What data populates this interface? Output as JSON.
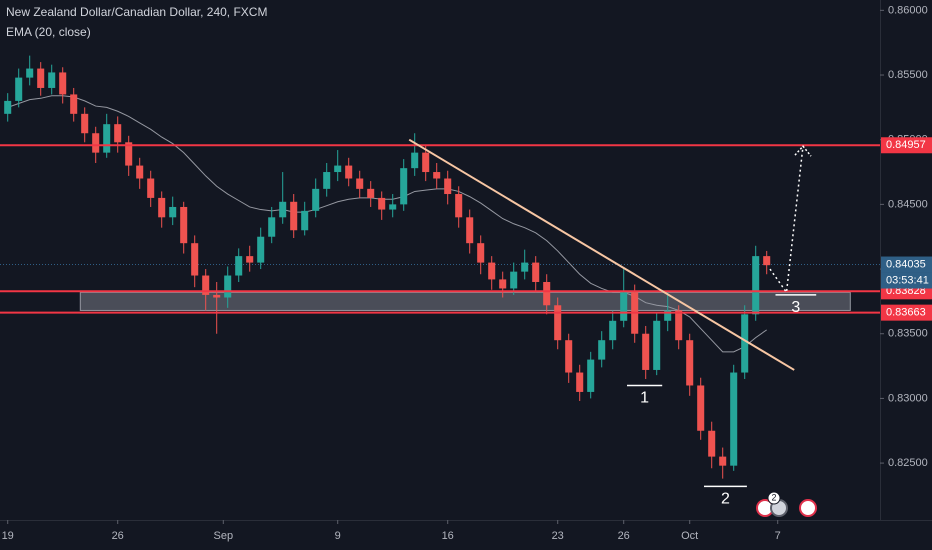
{
  "chart_data": {
    "type": "candlestick",
    "title": "New Zealand Dollar/Canadian Dollar, 240, FXCM",
    "indicator": "EMA (20, close)",
    "colors": {
      "up": "#26a69a",
      "down": "#ef5350"
    },
    "open": [
      0.852,
      0.853,
      0.8548,
      0.8555,
      0.854,
      0.8552,
      0.8535,
      0.852,
      0.8505,
      0.849,
      0.8512,
      0.8498,
      0.848,
      0.847,
      0.8455,
      0.844,
      0.8448,
      0.842,
      0.8395,
      0.838,
      0.8378,
      0.8395,
      0.841,
      0.8405,
      0.8425,
      0.844,
      0.8452,
      0.843,
      0.8445,
      0.8462,
      0.8475,
      0.848,
      0.847,
      0.8462,
      0.8455,
      0.8446,
      0.845,
      0.8478,
      0.849,
      0.8475,
      0.847,
      0.8458,
      0.844,
      0.842,
      0.8405,
      0.8392,
      0.8385,
      0.8398,
      0.8405,
      0.839,
      0.8372,
      0.8345,
      0.832,
      0.8305,
      0.833,
      0.8345,
      0.836,
      0.8382,
      0.835,
      0.8322,
      0.836,
      0.8368,
      0.8345,
      0.831,
      0.8275,
      0.8255,
      0.8248,
      0.832,
      0.8365,
      0.841
    ],
    "high": [
      0.8536,
      0.8555,
      0.8565,
      0.856,
      0.8558,
      0.8556,
      0.854,
      0.8525,
      0.851,
      0.852,
      0.8518,
      0.8503,
      0.8486,
      0.8476,
      0.846,
      0.8456,
      0.8452,
      0.8426,
      0.84,
      0.839,
      0.8402,
      0.8416,
      0.8418,
      0.8432,
      0.8448,
      0.8475,
      0.8458,
      0.8452,
      0.847,
      0.8482,
      0.8492,
      0.8486,
      0.8476,
      0.8468,
      0.846,
      0.8458,
      0.8485,
      0.8505,
      0.8496,
      0.8482,
      0.8476,
      0.8464,
      0.8446,
      0.8426,
      0.841,
      0.8398,
      0.8405,
      0.8415,
      0.841,
      0.8396,
      0.8378,
      0.835,
      0.8326,
      0.8336,
      0.8352,
      0.8368,
      0.84,
      0.8388,
      0.8356,
      0.8366,
      0.8382,
      0.8372,
      0.835,
      0.8316,
      0.8282,
      0.8262,
      0.8326,
      0.8372,
      0.8418,
      0.8414
    ],
    "low": [
      0.8514,
      0.8525,
      0.8542,
      0.8534,
      0.8535,
      0.8528,
      0.8514,
      0.8498,
      0.8482,
      0.8486,
      0.849,
      0.8472,
      0.8462,
      0.8448,
      0.8432,
      0.8434,
      0.8412,
      0.8386,
      0.8368,
      0.835,
      0.837,
      0.839,
      0.8398,
      0.84,
      0.842,
      0.8435,
      0.8424,
      0.8426,
      0.844,
      0.8456,
      0.8468,
      0.8464,
      0.8455,
      0.8448,
      0.8438,
      0.844,
      0.8445,
      0.8472,
      0.8468,
      0.8462,
      0.845,
      0.8432,
      0.8412,
      0.8396,
      0.8384,
      0.8378,
      0.838,
      0.8392,
      0.8382,
      0.8365,
      0.8338,
      0.8312,
      0.8298,
      0.83,
      0.8324,
      0.8338,
      0.8355,
      0.8343,
      0.8315,
      0.8318,
      0.8352,
      0.8338,
      0.8302,
      0.8268,
      0.8246,
      0.8238,
      0.8244,
      0.8315,
      0.836,
      0.8396
    ],
    "close": [
      0.853,
      0.8548,
      0.8555,
      0.854,
      0.8552,
      0.8535,
      0.852,
      0.8505,
      0.849,
      0.8512,
      0.8498,
      0.848,
      0.847,
      0.8455,
      0.844,
      0.8448,
      0.842,
      0.8395,
      0.838,
      0.8378,
      0.8395,
      0.841,
      0.8405,
      0.8425,
      0.844,
      0.8452,
      0.843,
      0.8445,
      0.8462,
      0.8475,
      0.848,
      0.847,
      0.8462,
      0.8455,
      0.8446,
      0.845,
      0.8478,
      0.849,
      0.8475,
      0.847,
      0.8458,
      0.844,
      0.842,
      0.8405,
      0.8392,
      0.8385,
      0.8398,
      0.8405,
      0.839,
      0.8372,
      0.8345,
      0.832,
      0.8305,
      0.833,
      0.8345,
      0.836,
      0.8382,
      0.835,
      0.8322,
      0.836,
      0.8368,
      0.8345,
      0.831,
      0.8275,
      0.8255,
      0.8248,
      0.832,
      0.8365,
      0.841,
      0.8403
    ],
    "ema": {
      "color": "#9598a1",
      "values": [
        0.8525,
        0.8528,
        0.8531,
        0.8532,
        0.8534,
        0.8534,
        0.8533,
        0.853,
        0.8526,
        0.8525,
        0.8522,
        0.8518,
        0.8513,
        0.8508,
        0.8502,
        0.8497,
        0.849,
        0.8481,
        0.8472,
        0.8464,
        0.8458,
        0.8453,
        0.8448,
        0.8446,
        0.8445,
        0.8446,
        0.8444,
        0.8444,
        0.8446,
        0.8449,
        0.8452,
        0.8454,
        0.8455,
        0.8455,
        0.8454,
        0.8454,
        0.8456,
        0.846,
        0.8461,
        0.8462,
        0.8462,
        0.846,
        0.8456,
        0.8451,
        0.8445,
        0.8439,
        0.8435,
        0.8432,
        0.8428,
        0.8422,
        0.8414,
        0.8405,
        0.8396,
        0.8389,
        0.8385,
        0.8382,
        0.8382,
        0.8379,
        0.8374,
        0.8372,
        0.8371,
        0.8368,
        0.8363,
        0.8354,
        0.8345,
        0.8336,
        0.8336,
        0.834,
        0.8347,
        0.8353
      ]
    },
    "xlim": [
      -0.7,
      79.3
    ],
    "xticks": [
      {
        "value": 0,
        "label": "19"
      },
      {
        "value": 10,
        "label": "26"
      },
      {
        "value": 19.6,
        "label": "Sep"
      },
      {
        "value": 30,
        "label": "9"
      },
      {
        "value": 40,
        "label": "16"
      },
      {
        "value": 50,
        "label": "23"
      },
      {
        "value": 56,
        "label": "26"
      },
      {
        "value": 62,
        "label": "Oct"
      },
      {
        "value": 70,
        "label": "7"
      }
    ],
    "ylim": [
      0.8206,
      0.8608
    ],
    "yticks": [
      {
        "value": 0.86,
        "label": "0.86000"
      },
      {
        "value": 0.855,
        "label": "0.85500"
      },
      {
        "value": 0.85,
        "label": "0.85000"
      },
      {
        "value": 0.845,
        "label": "0.84500"
      },
      {
        "value": 0.84,
        "label": "0.84000"
      },
      {
        "value": 0.835,
        "label": "0.83500"
      },
      {
        "value": 0.83,
        "label": "0.83000"
      },
      {
        "value": 0.825,
        "label": "0.82500"
      }
    ],
    "levels": [
      {
        "value": 0.84957,
        "color": "#f23645"
      },
      {
        "value": 0.83828,
        "color": "#f23645"
      },
      {
        "value": 0.83663,
        "color": "#f23645"
      }
    ],
    "zone": {
      "x": [
        6.6,
        76.6
      ],
      "y": [
        0.8368,
        0.8382
      ],
      "color": "#5d606b"
    },
    "current": {
      "value": 0.84035,
      "countdown": "03:53:41",
      "color": "#2f5f86"
    },
    "trendline": {
      "x": [
        36.5,
        71.5
      ],
      "y": [
        0.85,
        0.8322
      ],
      "color": "#f7c6a3"
    },
    "projection": {
      "x": [
        69.3,
        70.8,
        72.3
      ],
      "y": [
        0.84,
        0.8382,
        0.8495
      ]
    },
    "annotations": [
      {
        "text": "1",
        "x": [
          56.3,
          59.5
        ],
        "y": 0.831
      },
      {
        "text": "2",
        "x": [
          63.3,
          67.2
        ],
        "y": 0.8232
      },
      {
        "text": "3",
        "x": [
          69.8,
          73.5
        ],
        "y": 0.838
      }
    ],
    "event_badge": 2
  }
}
